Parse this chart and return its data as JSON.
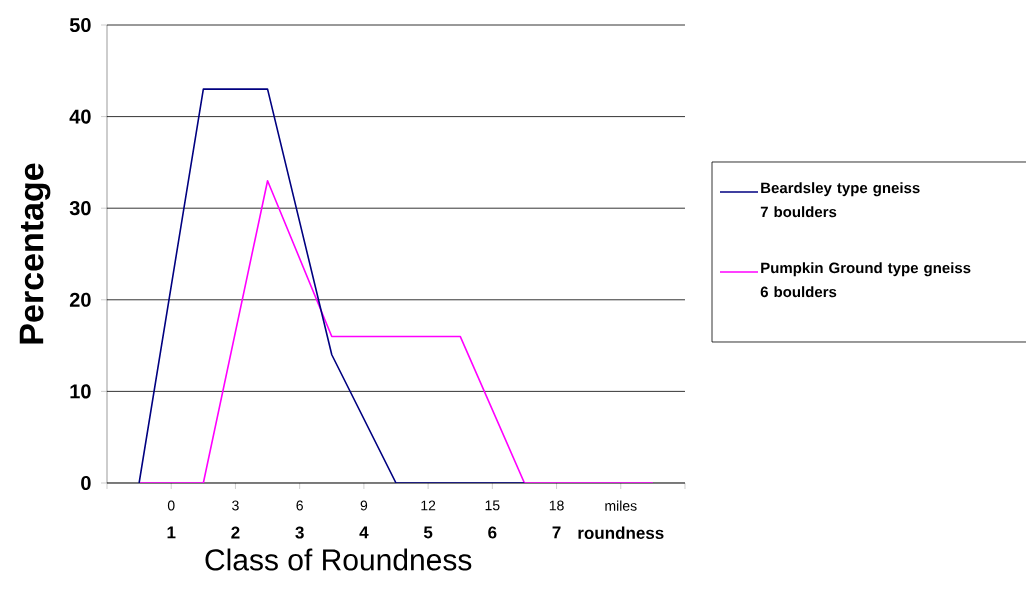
{
  "chart_data": {
    "type": "line",
    "xlabel": "Class  of Roundness",
    "ylabel": "Percentage",
    "xlim": [
      -3,
      24
    ],
    "xticks": [
      {
        "value": -3,
        "label": null
      },
      0,
      3,
      6,
      9,
      12,
      15,
      18,
      {
        "value": 21,
        "label": "miles"
      },
      {
        "value": 24,
        "label": null
      }
    ],
    "x2lim": [
      0,
      9
    ],
    "x2ticks": [
      {
        "value": 1,
        "label": "1"
      },
      {
        "value": 2,
        "label": "2"
      },
      {
        "value": 3,
        "label": "3"
      },
      {
        "value": 4,
        "label": "4"
      },
      {
        "value": 5,
        "label": "5"
      },
      {
        "value": 6,
        "label": "6"
      },
      {
        "value": 7,
        "label": "7"
      },
      {
        "value": 8,
        "label": "roundness"
      }
    ],
    "ylim": [
      0,
      50
    ],
    "yticks": [
      0,
      10,
      20,
      30,
      40,
      50
    ],
    "grid": "y",
    "legend": "right",
    "marker": "none",
    "line_style": "solid",
    "series": [
      {
        "name": "Beardsley type gneiss 7 boulders",
        "color": "#000080",
        "x": [
          -1.5,
          1.5,
          4.5,
          7.5,
          10.5,
          13.5,
          16.5
        ],
        "values": [
          0,
          43,
          43,
          14,
          0,
          0,
          0
        ]
      },
      {
        "name": "Pumpkin Ground type gneiss 6 boulders",
        "color": "#ff00ff",
        "x": [
          -1.5,
          1.5,
          4.5,
          7.5,
          10.5,
          13.5,
          16.5,
          19.5,
          22.5
        ],
        "values": [
          0,
          0,
          33,
          16,
          16,
          16,
          0,
          0,
          0
        ]
      }
    ]
  }
}
